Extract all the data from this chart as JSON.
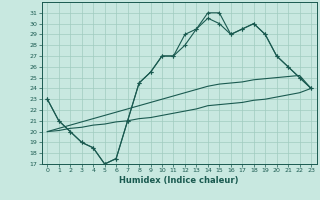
{
  "xlabel": "Humidex (Indice chaleur)",
  "bg_color": "#c8e8e0",
  "grid_color": "#a0ccc0",
  "line_color": "#1a5a50",
  "x_values": [
    0,
    1,
    2,
    3,
    4,
    5,
    6,
    7,
    8,
    9,
    10,
    11,
    12,
    13,
    14,
    15,
    16,
    17,
    18,
    19,
    20,
    21,
    22,
    23
  ],
  "line1": [
    23,
    21,
    20,
    19,
    18.5,
    17,
    17.5,
    21,
    24.5,
    25.5,
    27,
    27,
    29,
    29.5,
    31,
    31,
    29,
    29.5,
    30,
    29,
    27,
    26,
    25,
    24
  ],
  "line2": [
    23,
    21,
    20,
    19,
    18.5,
    17,
    17.5,
    21,
    24.5,
    25.5,
    27,
    27,
    28,
    29.5,
    30.5,
    30,
    29,
    29.5,
    30,
    29,
    27,
    26,
    25,
    24
  ],
  "line_straight1": [
    20,
    20.3,
    20.6,
    20.9,
    21.2,
    21.5,
    21.8,
    22.1,
    22.4,
    22.7,
    23,
    23.3,
    23.6,
    23.9,
    24.2,
    24.4,
    24.5,
    24.6,
    24.8,
    24.9,
    25,
    25.1,
    25.2,
    24
  ],
  "line_straight2": [
    20,
    20.1,
    20.3,
    20.4,
    20.6,
    20.7,
    20.9,
    21,
    21.2,
    21.3,
    21.5,
    21.7,
    21.9,
    22.1,
    22.4,
    22.5,
    22.6,
    22.7,
    22.9,
    23,
    23.2,
    23.4,
    23.6,
    24
  ],
  "ylim": [
    17,
    32
  ],
  "xlim": [
    -0.5,
    23.5
  ],
  "yticks": [
    17,
    18,
    19,
    20,
    21,
    22,
    23,
    24,
    25,
    26,
    27,
    28,
    29,
    30,
    31
  ],
  "xticks": [
    0,
    1,
    2,
    3,
    4,
    5,
    6,
    7,
    8,
    9,
    10,
    11,
    12,
    13,
    14,
    15,
    16,
    17,
    18,
    19,
    20,
    21,
    22,
    23
  ]
}
